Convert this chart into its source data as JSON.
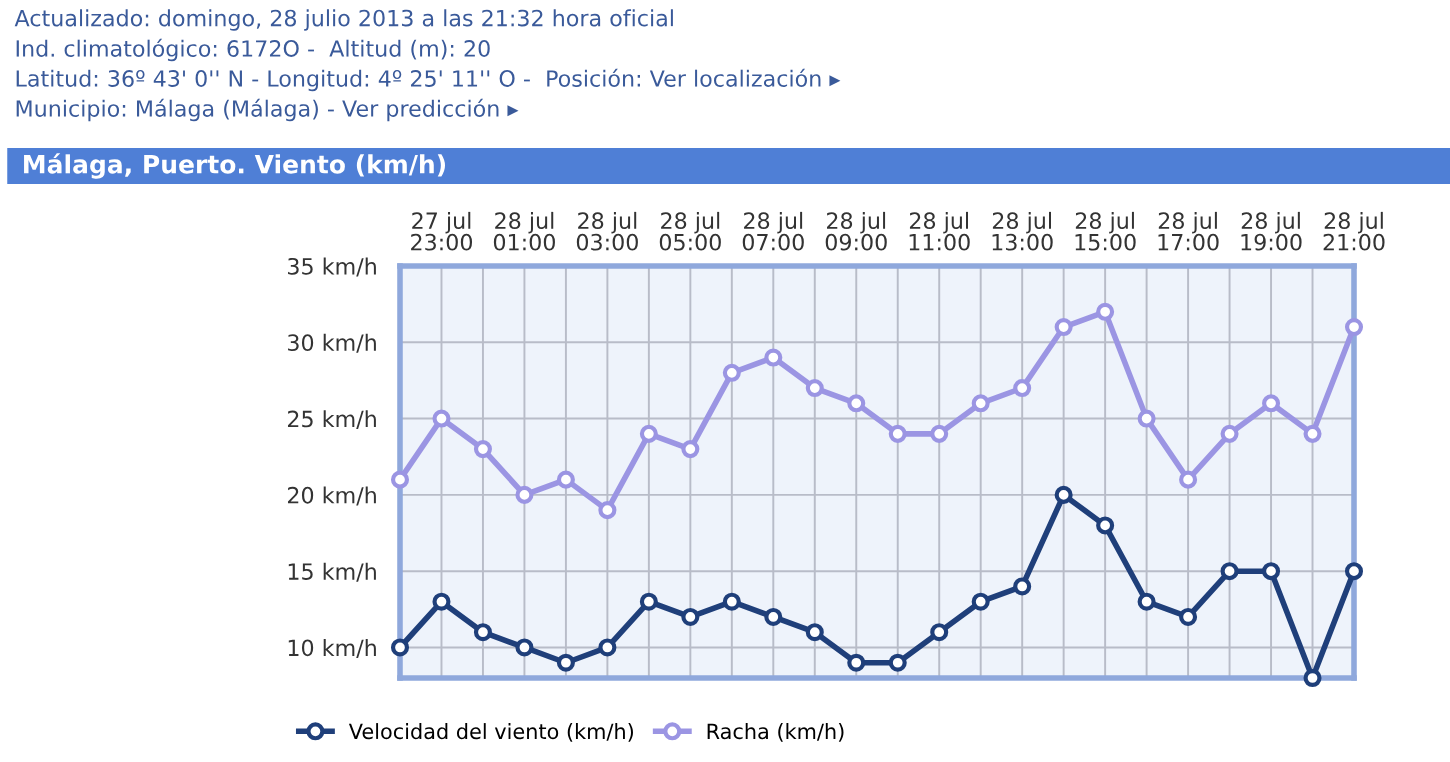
{
  "chart_data": {
    "type": "line",
    "title": "Málaga, Puerto. Viento (km/h)",
    "annotations": [
      "Actualizado: domingo, 28 julio 2013 a las 21:32 hora oficial",
      "Ind. climatológico: 6172O -  Altitud (m): 20",
      "Latitud: 36º 43' 0'' N - Longitud: 4º 25' 11'' O -  Posición: Ver localización ▸",
      "Municipio: Málaga (Málaga) - Ver predicción ▸"
    ],
    "categories": [
      null,
      "27 jul\n23:00",
      null,
      "28 jul\n01:00",
      null,
      "28 jul\n03:00",
      null,
      "28 jul\n05:00",
      null,
      "28 jul\n07:00",
      null,
      "28 jul\n09:00",
      null,
      "28 jul\n11:00",
      null,
      "28 jul\n13:00",
      null,
      "28 jul\n15:00",
      null,
      "28 jul\n17:00",
      null,
      "28 jul\n19:00",
      null,
      "28 jul\n21:00"
    ],
    "series": [
      {
        "name": "Velocidad del viento (km/h)",
        "color": "#1f3f7a",
        "values": [
          10,
          13,
          11,
          10,
          9,
          10,
          13,
          12,
          13,
          12,
          11,
          9,
          9,
          11,
          13,
          14,
          20,
          18,
          13,
          12,
          15,
          15,
          8,
          15
        ]
      },
      {
        "name": "Racha (km/h)",
        "color": "#9b95e3",
        "values": [
          21,
          25,
          23,
          20,
          21,
          19,
          24,
          23,
          28,
          29,
          27,
          26,
          24,
          24,
          26,
          27,
          31,
          32,
          25,
          21,
          24,
          26,
          24,
          31
        ]
      }
    ],
    "ylim": [
      8,
      35
    ],
    "yticks": [
      {
        "value": 10,
        "label": "10 km/h"
      },
      {
        "value": 15,
        "label": "15 km/h"
      },
      {
        "value": 20,
        "label": "20 km/h"
      },
      {
        "value": 25,
        "label": "25 km/h"
      },
      {
        "value": 30,
        "label": "30 km/h"
      },
      {
        "value": 35,
        "label": "35 km/h"
      }
    ],
    "grid": true,
    "legend": "bottom left",
    "marker": "circle",
    "line_style": "solid"
  }
}
